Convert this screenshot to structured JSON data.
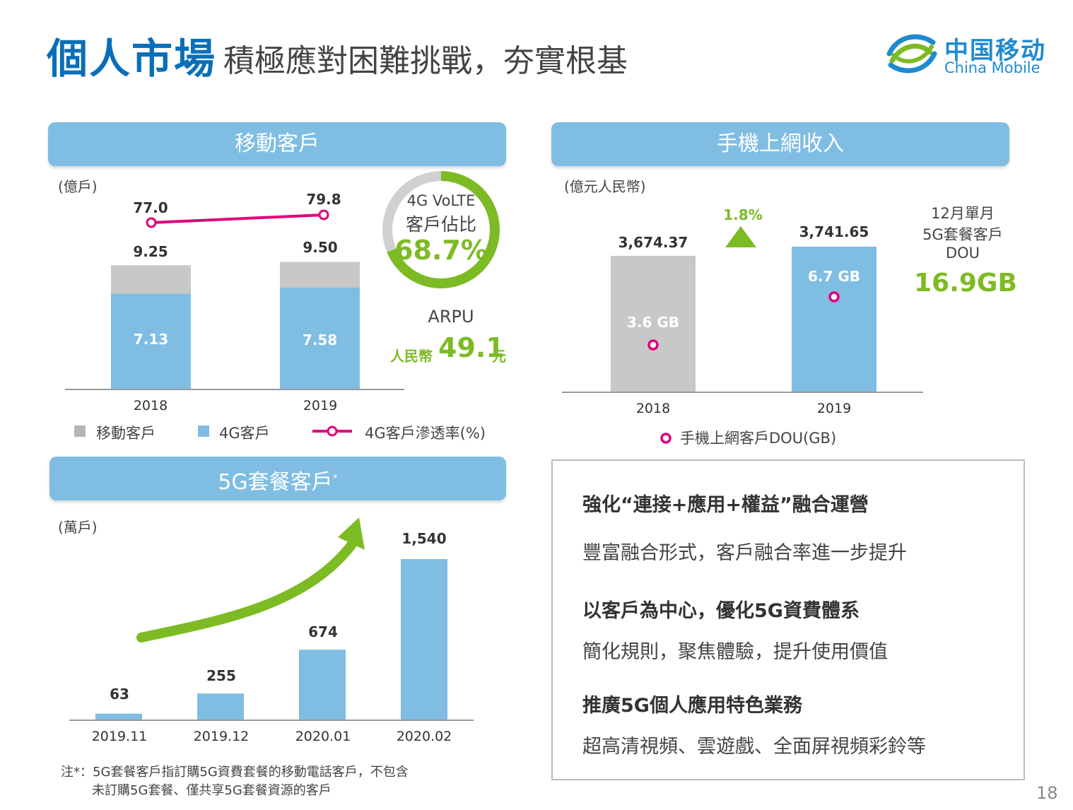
{
  "header": {
    "title_main": "個人市場",
    "title_sub": "積極應對困難挑戰，夯實根基",
    "logo_cn": "中国移动",
    "logo_en": "China Mobile"
  },
  "colors": {
    "blue_bar": "#7fbde3",
    "grey_bar": "#c8c8c8",
    "magenta": "#e0007a",
    "green": "#7dbb24",
    "title_blue": "#0a6fb8"
  },
  "mobile_customers": {
    "banner": "移動客戶",
    "unit": "(億戶)",
    "donut_label_1": "4G VoLTE",
    "donut_label_2": "客戶佔比",
    "donut_value": "68.7%",
    "arpu_label": "ARPU",
    "arpu_prefix": "人民幣",
    "arpu_value": "49.1",
    "arpu_suffix": "元",
    "legend": {
      "total": "移動客戶",
      "fourg": "4G客戶",
      "rate": "4G客戶滲透率(%)"
    }
  },
  "mobile_internet": {
    "banner": "手機上網收入",
    "unit": "(億元人民幣)",
    "growth": "1.8%",
    "side_label_1": "12月單月",
    "side_label_2": "5G套餐客戶",
    "side_label_3": "DOU",
    "side_value": "16.9GB",
    "legend": "手機上網客戶DOU(GB)"
  },
  "fiveg": {
    "banner": "5G套餐客戶",
    "banner_sup": "*",
    "unit": "(萬戶)",
    "note_1": "注*：5G套餐客戶指訂購5G資費套餐的移動電話客戶，不包含",
    "note_2": "未訂購5G套餐、僅共享5G套餐資源的客戶"
  },
  "panel": {
    "items": [
      {
        "head": "強化“連接+應用+權益”融合運營",
        "body": "豐富融合形式，客戶融合率進一步提升"
      },
      {
        "head": "以客戶為中心，優化5G資費體系",
        "body": "簡化規則，聚焦體驗，提升使用價值"
      },
      {
        "head": "推廣5G個人應用特色業務",
        "body": "超高清視頻、雲遊戲、全面屏視頻彩鈴等"
      }
    ]
  },
  "page_number": "18",
  "chart_data": [
    {
      "type": "bar",
      "title": "移動客戶",
      "ylabel": "(億戶)",
      "categories": [
        "2018",
        "2019"
      ],
      "stacked": true,
      "series": [
        {
          "name": "4G客戶",
          "values": [
            7.13,
            7.58
          ],
          "labels": [
            "7.13",
            "7.58"
          ]
        },
        {
          "name": "移動客戶",
          "values": [
            9.25,
            9.5
          ],
          "labels": [
            "9.25",
            "9.50"
          ]
        }
      ],
      "line_series": {
        "name": "4G客戶滲透率(%)",
        "values": [
          77.0,
          79.8
        ],
        "labels": [
          "77.0",
          "79.8"
        ]
      },
      "donut": {
        "value": 68.7
      }
    },
    {
      "type": "bar",
      "title": "手機上網收入",
      "ylabel": "(億元人民幣)",
      "categories": [
        "2018",
        "2019"
      ],
      "values": [
        3674.37,
        3741.65
      ],
      "labels": [
        "3,674.37",
        "3,741.65"
      ],
      "point_series": {
        "name": "手機上網客戶DOU(GB)",
        "values": [
          3.6,
          6.7
        ],
        "labels": [
          "3.6 GB",
          "6.7 GB"
        ]
      }
    },
    {
      "type": "bar",
      "title": "5G套餐客戶",
      "ylabel": "(萬戶)",
      "categories": [
        "2019.11",
        "2019.12",
        "2020.01",
        "2020.02"
      ],
      "values": [
        63,
        255,
        674,
        1540
      ],
      "labels": [
        "63",
        "255",
        "674",
        "1,540"
      ]
    }
  ]
}
